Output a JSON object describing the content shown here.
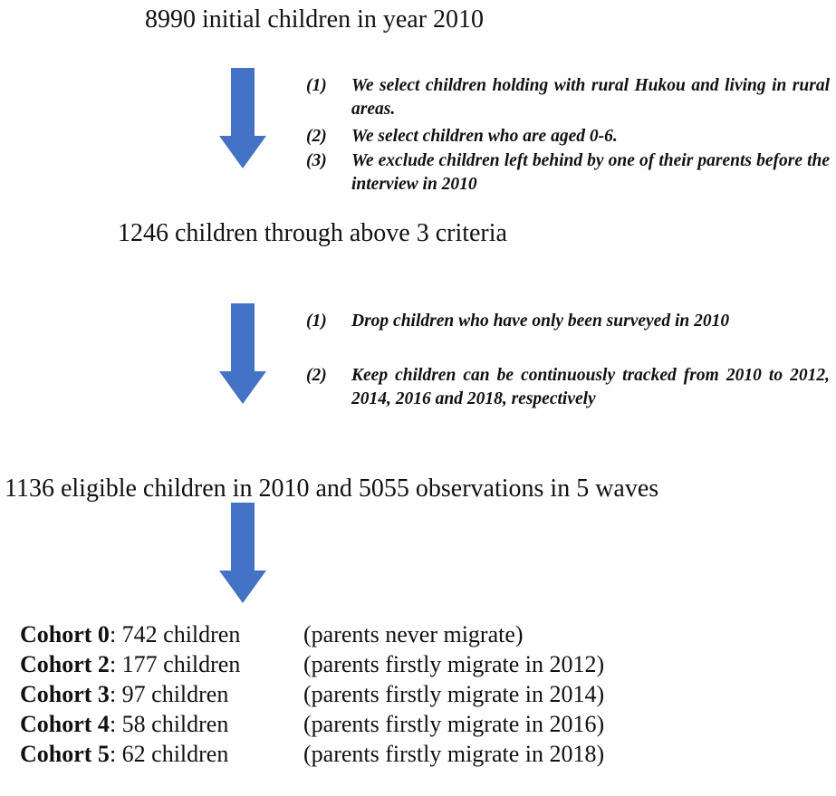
{
  "header": {
    "title": "8990 initial children in year 2010"
  },
  "steps": [
    {
      "criteria": [
        {
          "number": "(1)",
          "text": "We select children holding with rural Hukou and living in rural areas."
        },
        {
          "number": "(2)",
          "text": "We select children who are aged 0-6."
        },
        {
          "number": "(3)",
          "text": "We exclude children left behind by one of their parents before the interview in 2010"
        }
      ],
      "result": "1246 children through above 3 criteria"
    },
    {
      "criteria": [
        {
          "number": "(1)",
          "text": "Drop children who have only been surveyed in 2010"
        },
        {
          "number": "(2)",
          "text": "Keep children can be continuously tracked from 2010 to 2012, 2014, 2016 and 2018, respectively"
        }
      ],
      "result": "1136 eligible children in 2010 and 5055 observations in 5 waves"
    }
  ],
  "cohorts": [
    {
      "label": "Cohort 0",
      "count": ": 742 children",
      "note": "(parents never migrate)"
    },
    {
      "label": "Cohort 2",
      "count": ": 177 children",
      "note": "(parents firstly migrate in 2012)"
    },
    {
      "label": "Cohort 3",
      "count": ": 97 children",
      "note": "(parents firstly migrate in 2014)"
    },
    {
      "label": "Cohort 4",
      "count": ": 58 children",
      "note": "(parents firstly migrate in 2016)"
    },
    {
      "label": "Cohort 5",
      "count": ": 62 children",
      "note": "(parents firstly migrate in 2018)"
    }
  ]
}
